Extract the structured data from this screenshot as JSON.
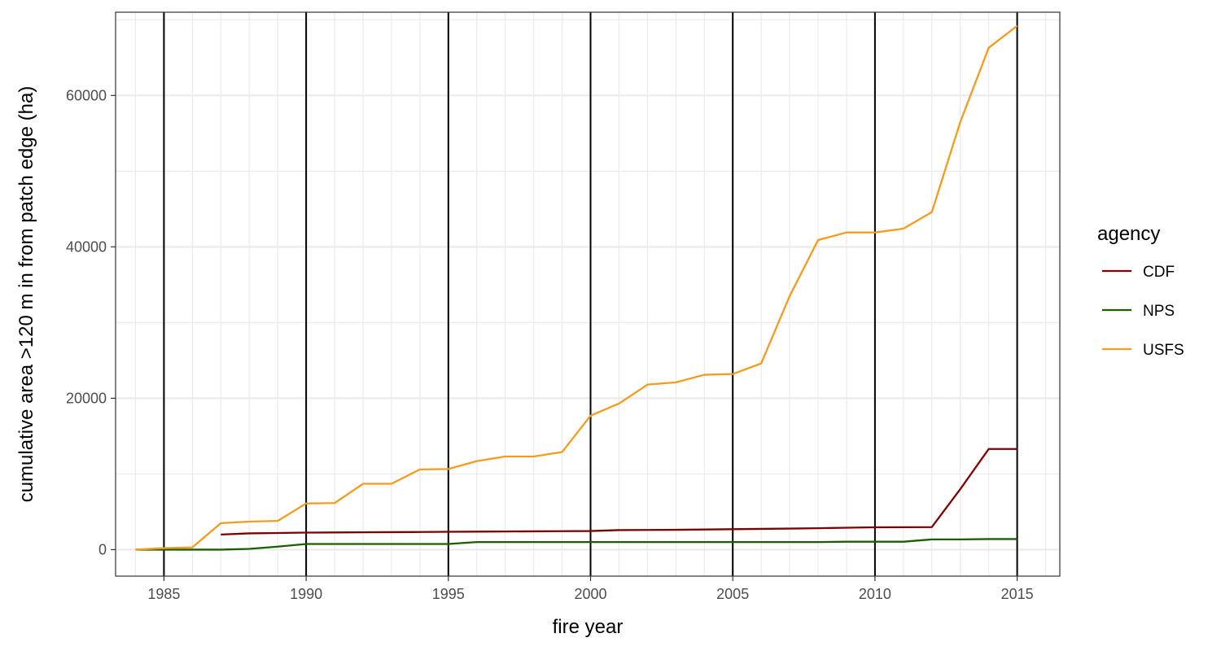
{
  "chart_data": {
    "type": "line",
    "xlabel": "fire year",
    "ylabel": "cumulative area >120 m in from patch edge (ha)",
    "xlim": [
      1983.3,
      2016.5
    ],
    "ylim": [
      -3500,
      71000
    ],
    "x_ticks": [
      1985,
      1990,
      1995,
      2000,
      2005,
      2010,
      2015
    ],
    "x_tick_labels": [
      "1985",
      "1990",
      "1995",
      "2000",
      "2005",
      "2010",
      "2015"
    ],
    "y_ticks": [
      0,
      20000,
      40000,
      60000
    ],
    "y_tick_labels": [
      "0",
      "20000",
      "40000",
      "60000"
    ],
    "vertical_reference_lines": [
      1985,
      1990,
      1995,
      2000,
      2005,
      2010,
      2015
    ],
    "grid": true,
    "legend": {
      "title": "agency",
      "position": "right",
      "entries": [
        "CDF",
        "NPS",
        "USFS"
      ]
    },
    "series": [
      {
        "name": "CDF",
        "color": "#7f0000",
        "x": [
          1987,
          1988,
          1989,
          1990,
          1991,
          1992,
          1993,
          1994,
          1995,
          1996,
          1997,
          1998,
          1999,
          2000,
          2001,
          2002,
          2003,
          2004,
          2005,
          2006,
          2007,
          2008,
          2009,
          2010,
          2011,
          2012,
          2013,
          2014,
          2015
        ],
        "y": [
          2000,
          2150,
          2200,
          2250,
          2270,
          2290,
          2310,
          2330,
          2360,
          2380,
          2400,
          2420,
          2440,
          2460,
          2580,
          2600,
          2620,
          2660,
          2700,
          2740,
          2780,
          2830,
          2900,
          2950,
          2960,
          2980,
          8000,
          13300,
          13300
        ]
      },
      {
        "name": "NPS",
        "color": "#1a5e00",
        "x": [
          1984,
          1985,
          1986,
          1987,
          1988,
          1989,
          1990,
          1991,
          1992,
          1993,
          1994,
          1995,
          1996,
          1997,
          1998,
          1999,
          2000,
          2001,
          2002,
          2003,
          2004,
          2005,
          2006,
          2007,
          2008,
          2009,
          2010,
          2011,
          2012,
          2013,
          2014,
          2015
        ],
        "y": [
          0,
          0,
          0,
          0,
          100,
          400,
          750,
          750,
          750,
          750,
          750,
          750,
          1000,
          1000,
          1000,
          1000,
          1000,
          1000,
          1000,
          1000,
          1000,
          1000,
          1000,
          1000,
          1000,
          1050,
          1050,
          1050,
          1350,
          1350,
          1400,
          1400
        ]
      },
      {
        "name": "USFS",
        "color": "#f39c1d",
        "x": [
          1984,
          1985,
          1986,
          1987,
          1988,
          1989,
          1990,
          1991,
          1992,
          1993,
          1994,
          1995,
          1996,
          1997,
          1998,
          1999,
          2000,
          2001,
          2002,
          2003,
          2004,
          2005,
          2006,
          2007,
          2008,
          2009,
          2010,
          2011,
          2012,
          2013,
          2014,
          2015
        ],
        "y": [
          0,
          200,
          300,
          3500,
          3700,
          3800,
          6100,
          6150,
          8700,
          8700,
          10600,
          10650,
          11700,
          12300,
          12300,
          12900,
          17700,
          19300,
          21800,
          22100,
          23100,
          23200,
          24600,
          33500,
          40900,
          41900,
          41900,
          42400,
          44600,
          56500,
          66300,
          69200
        ]
      }
    ]
  }
}
